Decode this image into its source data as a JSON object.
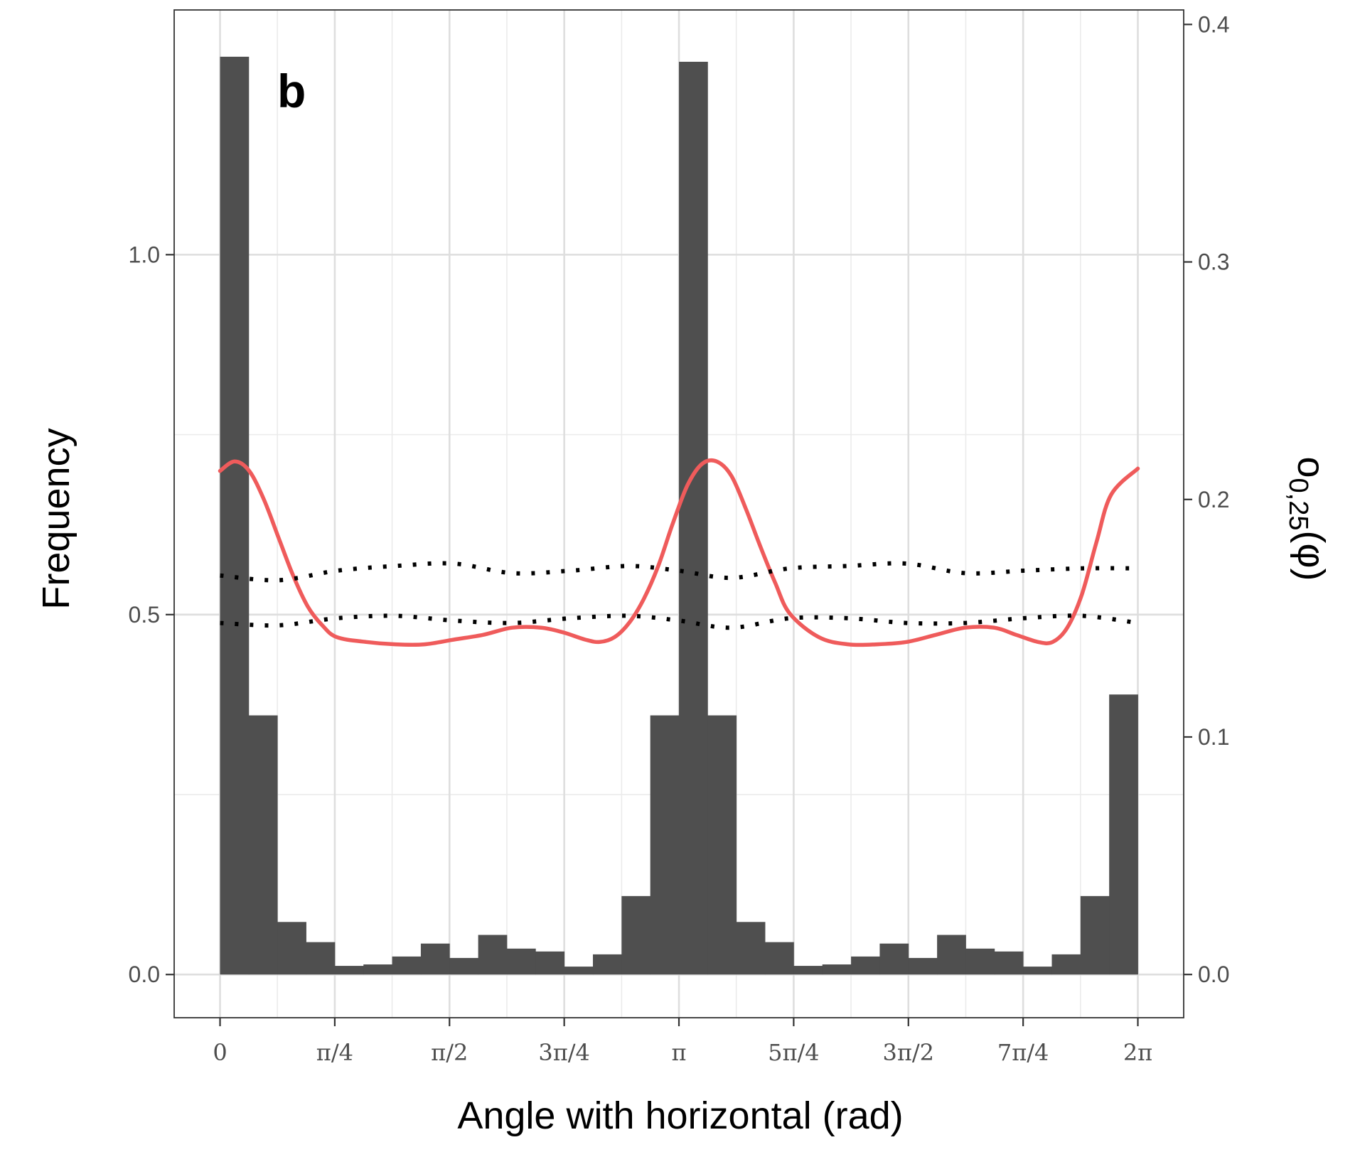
{
  "chart_data": {
    "type": "bar",
    "panel_label": "b",
    "xlabel": "Angle with horizontal (rad)",
    "ylabel": "Frequency",
    "y2label": {
      "main": "o",
      "sub": "0,25",
      "arg": "(φ)"
    },
    "x_ticks": [
      "0",
      "π/4",
      "π/2",
      "3π/4",
      "π",
      "5π/4",
      "3π/2",
      "7π/4",
      "2π"
    ],
    "xlim_rad": [
      -0.314,
      6.597
    ],
    "y_ticks": [
      "0.0",
      "0.5",
      "1.0"
    ],
    "y_tick_values": [
      0,
      0.5,
      1.0
    ],
    "ylim": [
      -0.06,
      1.34
    ],
    "y2_ticks": [
      "0.0",
      "0.1",
      "0.2",
      "0.3",
      "0.4"
    ],
    "y2_tick_values": [
      0,
      0.1,
      0.2,
      0.3,
      0.4
    ],
    "y2lim": [
      -0.0182,
      0.4061
    ],
    "grid": true,
    "histogram": {
      "color": "#4f4f4f",
      "bin_width_rad": 0.19635,
      "values": [
        1.275,
        0.36,
        0.073,
        0.045,
        0.012,
        0.014,
        0.025,
        0.043,
        0.023,
        0.055,
        0.036,
        0.032,
        0.011,
        0.028,
        0.109,
        0.36,
        1.268,
        0.36,
        0.073,
        0.045,
        0.012,
        0.014,
        0.025,
        0.043,
        0.023,
        0.055,
        0.036,
        0.032,
        0.011,
        0.028,
        0.109,
        0.389
      ]
    },
    "series": [
      {
        "color": "#ef5b5b",
        "style": "solid",
        "x": [
          0,
          0.1,
          0.2,
          0.3,
          0.4,
          0.5,
          0.6,
          0.7,
          0.8,
          1.0,
          1.2,
          1.4,
          1.6,
          1.8,
          2.0,
          2.2,
          2.35,
          2.5,
          2.6,
          2.7,
          2.8,
          2.9,
          3.0,
          3.1,
          3.2,
          3.3,
          3.4,
          3.5,
          3.6,
          3.7,
          3.8,
          3.9,
          4.1,
          4.3,
          4.5,
          4.7,
          4.9,
          5.1,
          5.3,
          5.45,
          5.6,
          5.7,
          5.8,
          5.9,
          6.0,
          6.1,
          6.2832
        ],
        "values": [
          0.212,
          0.216,
          0.212,
          0.2,
          0.184,
          0.168,
          0.155,
          0.147,
          0.142,
          0.14,
          0.139,
          0.139,
          0.141,
          0.143,
          0.146,
          0.146,
          0.144,
          0.141,
          0.14,
          0.142,
          0.148,
          0.158,
          0.172,
          0.19,
          0.206,
          0.215,
          0.216,
          0.21,
          0.196,
          0.18,
          0.165,
          0.152,
          0.142,
          0.139,
          0.139,
          0.14,
          0.143,
          0.146,
          0.146,
          0.143,
          0.14,
          0.14,
          0.146,
          0.16,
          0.182,
          0.202,
          0.213
        ]
      },
      {
        "color": "#000000",
        "style": "dotted",
        "x": [
          0,
          0.4,
          0.8,
          1.2,
          1.6,
          2.0,
          2.4,
          2.8,
          3.142,
          3.5,
          3.9,
          4.3,
          4.7,
          5.1,
          5.5,
          5.9,
          6.2832
        ],
        "values": [
          0.168,
          0.166,
          0.17,
          0.172,
          0.173,
          0.169,
          0.17,
          0.172,
          0.17,
          0.167,
          0.171,
          0.172,
          0.173,
          0.169,
          0.17,
          0.171,
          0.171
        ]
      },
      {
        "color": "#000000",
        "style": "dotted",
        "x": [
          0,
          0.4,
          0.8,
          1.2,
          1.6,
          2.0,
          2.4,
          2.8,
          3.142,
          3.5,
          3.9,
          4.3,
          4.7,
          5.1,
          5.5,
          5.9,
          6.2832
        ],
        "values": [
          0.148,
          0.147,
          0.15,
          0.151,
          0.149,
          0.148,
          0.15,
          0.151,
          0.149,
          0.146,
          0.15,
          0.15,
          0.148,
          0.148,
          0.15,
          0.151,
          0.148
        ]
      }
    ]
  }
}
